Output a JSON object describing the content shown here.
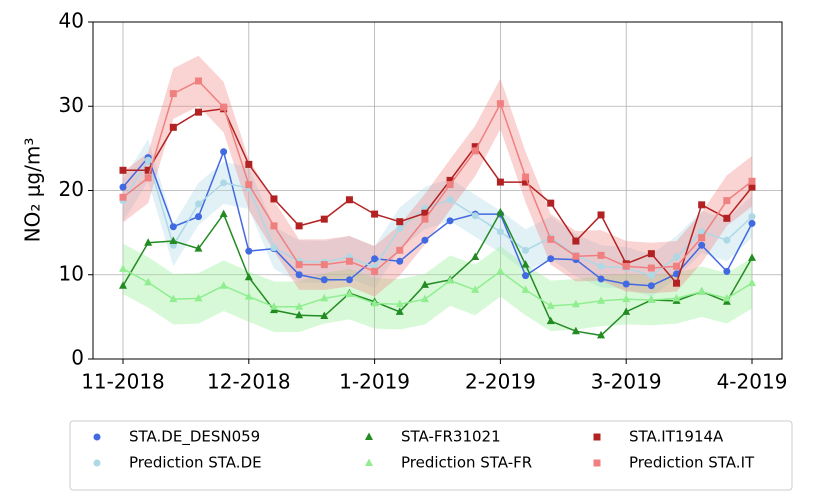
{
  "chart_data": {
    "type": "line",
    "ylabel": "NO₂ μg/m³",
    "categories": [
      "11-2018",
      null,
      null,
      null,
      null,
      "12-2018",
      null,
      null,
      null,
      null,
      "1-2019",
      null,
      null,
      null,
      null,
      "2-2019",
      null,
      null,
      null,
      null,
      "3-2019",
      null,
      null,
      null,
      null,
      "4-2019"
    ],
    "ylim": [
      0,
      40
    ],
    "yticks": [
      0,
      10,
      20,
      30,
      40
    ],
    "grid": true,
    "legend": "bottom",
    "series": [
      {
        "name": "STA.DE_DESN059",
        "color": "#4169e1",
        "marker": "circle",
        "values": [
          20.4,
          23.9,
          15.7,
          16.9,
          24.6,
          12.8,
          13.1,
          10,
          9.4,
          9.4,
          11.9,
          11.6,
          14.1,
          16.4,
          17.2,
          17.2,
          9.9,
          11.9,
          11.8,
          9.5,
          8.9,
          8.7,
          10.1,
          13.5,
          10.4,
          16.1
        ]
      },
      {
        "name": "Prediction STA.DE",
        "color": "#add8e6",
        "marker": "circle",
        "values": [
          18.8,
          23.6,
          13.5,
          18.4,
          20.9,
          20.3,
          13.2,
          11.6,
          11.5,
          12.1,
          10.9,
          15.5,
          17.9,
          18.9,
          17,
          15.1,
          12.9,
          14.4,
          12.3,
          11,
          10.8,
          9.9,
          12.1,
          15.1,
          14.1,
          16.9
        ],
        "lower": [
          16.3,
          21.1,
          11,
          15.9,
          18.4,
          17.8,
          10.7,
          9.1,
          9,
          9.6,
          8.4,
          13,
          15.4,
          16.4,
          14.5,
          12.6,
          10.4,
          11.9,
          9.8,
          8.5,
          8.3,
          7.4,
          9.6,
          12.6,
          11.6,
          14.4
        ],
        "upper": [
          21.3,
          26.1,
          16,
          20.9,
          23.4,
          22.8,
          15.7,
          14.1,
          14,
          14.6,
          13.4,
          18,
          20.4,
          21.4,
          19.5,
          17.6,
          15.4,
          16.9,
          14.8,
          13.5,
          13.3,
          12.4,
          14.6,
          17.6,
          16.6,
          19.4
        ]
      },
      {
        "name": "STA-FR31021",
        "color": "#228b22",
        "marker": "triangle",
        "values": [
          8.7,
          13.8,
          14,
          13.1,
          17.2,
          9.7,
          5.8,
          5.2,
          5.1,
          7.8,
          6.8,
          5.6,
          8.8,
          9.4,
          12.1,
          17.4,
          11.2,
          4.5,
          3.3,
          2.8,
          5.6,
          7,
          6.9,
          8,
          6.8,
          12
        ]
      },
      {
        "name": "Prediction STA-FR",
        "color": "#90ee90",
        "marker": "triangle",
        "values": [
          10.7,
          9.1,
          7.1,
          7.2,
          8.7,
          7.4,
          6.2,
          6.2,
          7.2,
          7.7,
          6.6,
          6.5,
          7.1,
          9.3,
          8.2,
          10.4,
          8.2,
          6.3,
          6.5,
          6.9,
          7.1,
          7,
          7.2,
          8,
          7.2,
          9
        ],
        "lower": [
          7.7,
          6.1,
          4.1,
          4.2,
          5.7,
          4.4,
          3.2,
          3.2,
          4.2,
          4.7,
          3.6,
          3.5,
          4.1,
          6.3,
          5.2,
          7.4,
          5.2,
          3.3,
          3.5,
          3.9,
          4.1,
          4,
          4.2,
          5,
          4.2,
          6
        ],
        "upper": [
          13.7,
          12.1,
          10.1,
          10.2,
          11.7,
          10.4,
          9.2,
          9.2,
          10.2,
          10.7,
          9.6,
          9.5,
          10.1,
          12.3,
          11.2,
          13.4,
          11.2,
          9.3,
          9.5,
          9.9,
          10.1,
          10,
          10.2,
          11,
          10.2,
          12
        ]
      },
      {
        "name": "STA.IT1914A",
        "color": "#b22222",
        "marker": "square",
        "values": [
          22.4,
          22.4,
          27.5,
          29.3,
          29.7,
          23.1,
          19,
          15.8,
          16.6,
          18.9,
          17.2,
          16.3,
          17.3,
          21.2,
          25.2,
          21,
          21,
          18.5,
          14,
          17.1,
          11.3,
          12.5,
          9,
          18.3,
          16.7,
          20.4
        ]
      },
      {
        "name": "Prediction STA.IT",
        "color": "#f08080",
        "marker": "square",
        "values": [
          19.2,
          21.5,
          31.5,
          33,
          29.9,
          20.7,
          15.8,
          11.2,
          11.2,
          11.6,
          10.4,
          12.9,
          16.6,
          20.7,
          24.7,
          30.3,
          21.6,
          14.2,
          12.2,
          12.3,
          11,
          10.8,
          11,
          14.4,
          18.8,
          21.1
        ],
        "lower": [
          16.2,
          18.5,
          28.5,
          30,
          26.9,
          17.7,
          12.8,
          8.2,
          8.2,
          8.6,
          7.4,
          9.9,
          13.6,
          17.7,
          21.7,
          27.3,
          18.6,
          11.2,
          9.2,
          9.3,
          8,
          7.8,
          8,
          11.4,
          15.8,
          18.1
        ],
        "upper": [
          22.2,
          24.5,
          34.5,
          36,
          32.9,
          23.7,
          18.8,
          14.2,
          14.2,
          14.6,
          13.4,
          15.9,
          19.6,
          23.7,
          27.7,
          33.3,
          24.6,
          17.2,
          15.2,
          15.3,
          14,
          13.8,
          14,
          17.4,
          21.8,
          24.1
        ]
      }
    ]
  }
}
